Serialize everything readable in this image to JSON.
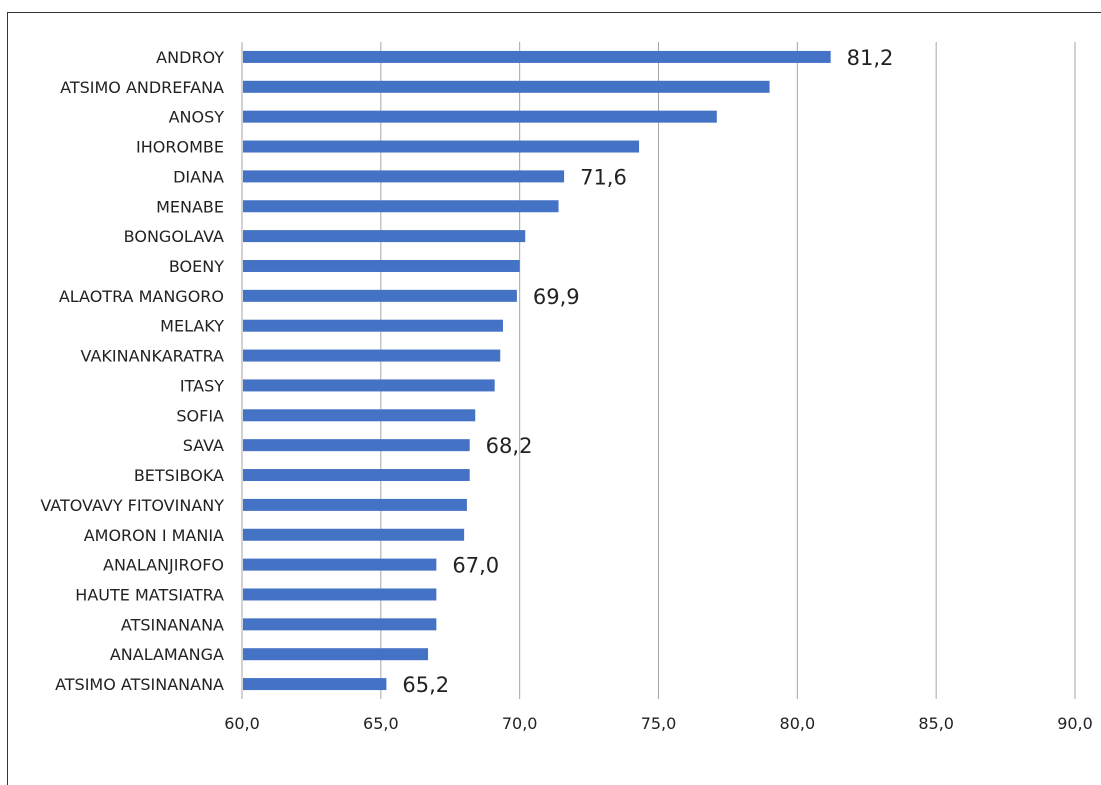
{
  "chart_data": {
    "type": "bar",
    "orientation": "horizontal",
    "categories": [
      "ANDROY",
      "ATSIMO ANDREFANA",
      "ANOSY",
      "IHOROMBE",
      "DIANA",
      "MENABE",
      "BONGOLAVA",
      "BOENY",
      "ALAOTRA MANGORO",
      "MELAKY",
      "VAKINANKARATRA",
      "ITASY",
      "SOFIA",
      "SAVA",
      "BETSIBOKA",
      "VATOVAVY FITOVINANY",
      "AMORON I MANIA",
      "ANALANJIROFO",
      "HAUTE MATSIATRA",
      "ATSINANANA",
      "ANALAMANGA",
      "ATSIMO ATSINANANA"
    ],
    "values": [
      81.2,
      79.0,
      77.1,
      74.3,
      71.6,
      71.4,
      70.2,
      70.0,
      69.9,
      69.4,
      69.3,
      69.1,
      68.4,
      68.2,
      68.2,
      68.1,
      68.0,
      67.0,
      67.0,
      67.0,
      66.7,
      65.2
    ],
    "data_labels": [
      {
        "category": "ANDROY",
        "text": "81,2"
      },
      {
        "category": "DIANA",
        "text": "71,6"
      },
      {
        "category": "ALAOTRA MANGORO",
        "text": "69,9"
      },
      {
        "category": "SAVA",
        "text": "68,2"
      },
      {
        "category": "ANALANJIROFO",
        "text": "67,0"
      },
      {
        "category": "ATSIMO ATSINANANA",
        "text": "65,2"
      }
    ],
    "xlim": [
      60,
      90
    ],
    "x_ticks": [
      "60,0",
      "65,0",
      "70,0",
      "75,0",
      "80,0",
      "85,0",
      "90,0"
    ],
    "grid": "vertical",
    "bar_color": "#4472C4",
    "grid_color": "#A6A6A6",
    "title": "",
    "xlabel": "",
    "ylabel": ""
  }
}
